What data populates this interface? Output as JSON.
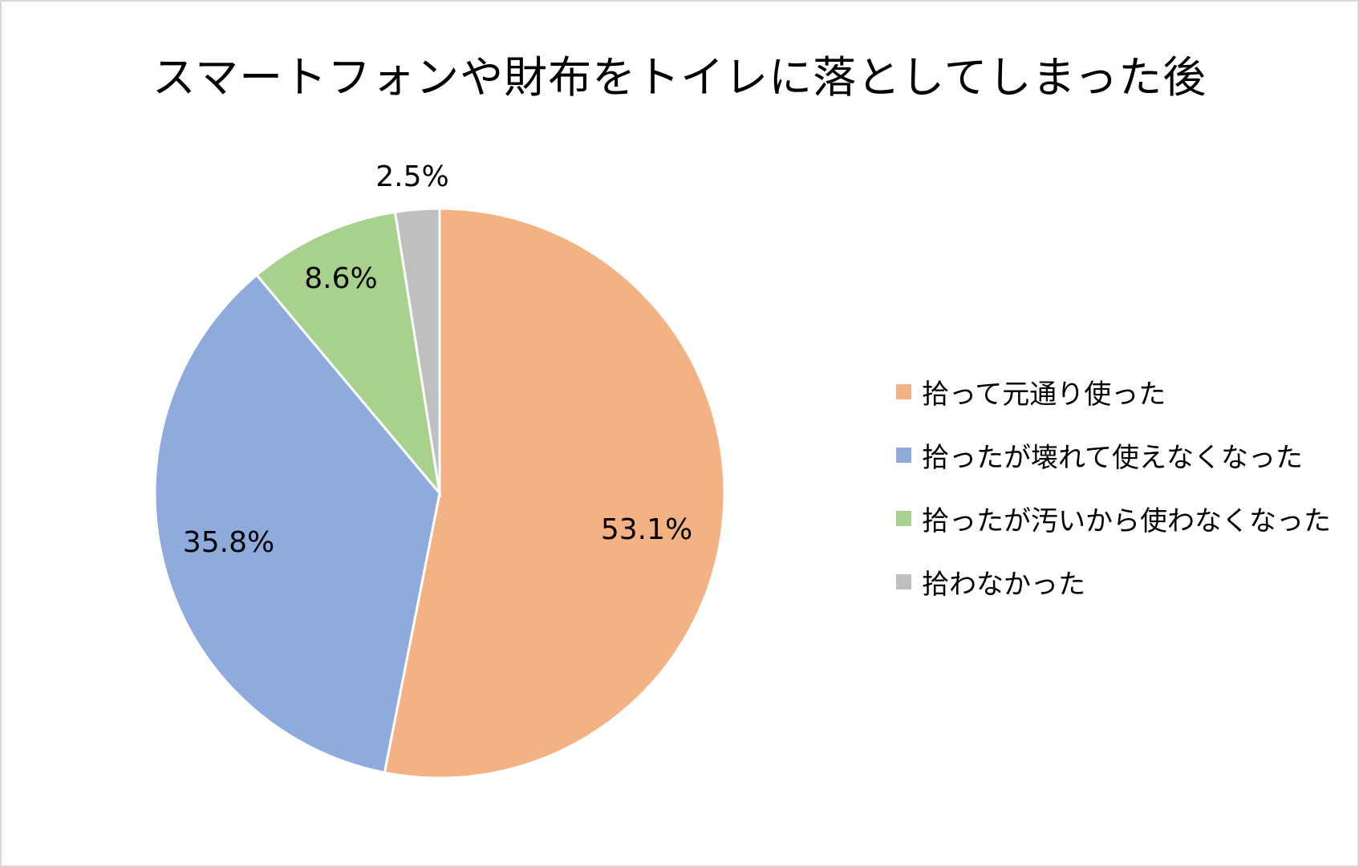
{
  "chart_data": {
    "type": "pie",
    "title": "スマートフォンや財布をトイレに落としてしまった後",
    "categories": [
      "拾って元通り使った",
      "拾ったが壊れて使えなくなった",
      "拾ったが汚いから使わなくなった",
      "拾わなかった"
    ],
    "values": [
      53.1,
      35.8,
      8.6,
      2.5
    ],
    "data_labels": [
      "53.1%",
      "35.8%",
      "8.6%",
      "2.5%"
    ],
    "colors": [
      "#F4B183",
      "#8FAADC",
      "#A9D18E",
      "#BFBFBF"
    ],
    "start_angle": "12 o'clock",
    "direction": "clockwise",
    "legend_position": "right"
  }
}
